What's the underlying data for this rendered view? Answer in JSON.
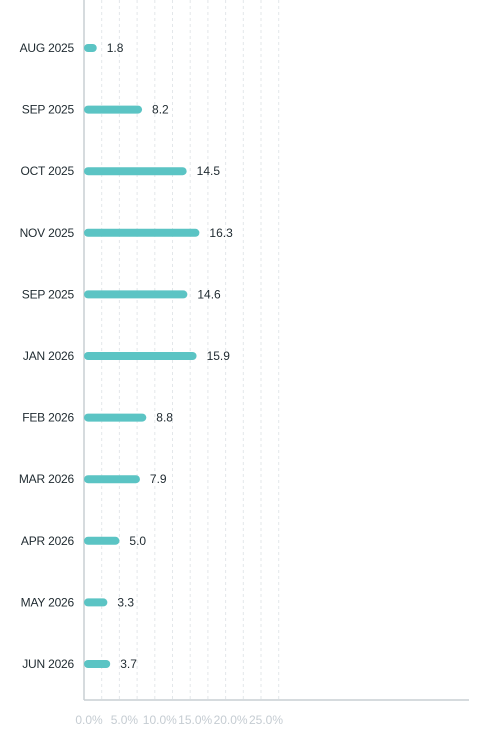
{
  "chart_data": {
    "type": "bar",
    "orientation": "horizontal",
    "categories": [
      "AUG 2025",
      "SEP 2025",
      "OCT 2025",
      "NOV 2025",
      "SEP 2025",
      "JAN 2026",
      "FEB 2026",
      "MAR 2026",
      "APR 2026",
      "MAY 2026",
      "JUN 2026"
    ],
    "values": [
      1.8,
      8.2,
      14.5,
      16.3,
      14.6,
      15.9,
      8.8,
      7.9,
      5.0,
      3.3,
      3.7
    ],
    "value_labels": [
      "1.8",
      "8.2",
      "14.5",
      "16.3",
      "14.6",
      "15.9",
      "8.8",
      "7.9",
      "5.0",
      "3.3",
      "3.7"
    ],
    "xlim": [
      0,
      27.5
    ],
    "x_ticks": [
      0,
      5,
      10,
      15,
      20,
      25
    ],
    "x_tick_labels": [
      "0.0%",
      "5.0%",
      "10.0%",
      "15.0%",
      "20.0%",
      "25.0%"
    ],
    "grid": "vertical dashed",
    "legend": "none",
    "title": "",
    "xlabel": "",
    "ylabel": "",
    "colors": {
      "bar": "#5bc4c4",
      "grid": "#e3e7ea",
      "axis": "#c9cfd4",
      "label": "#1f2a30",
      "tick": "#c5ccd2"
    }
  }
}
